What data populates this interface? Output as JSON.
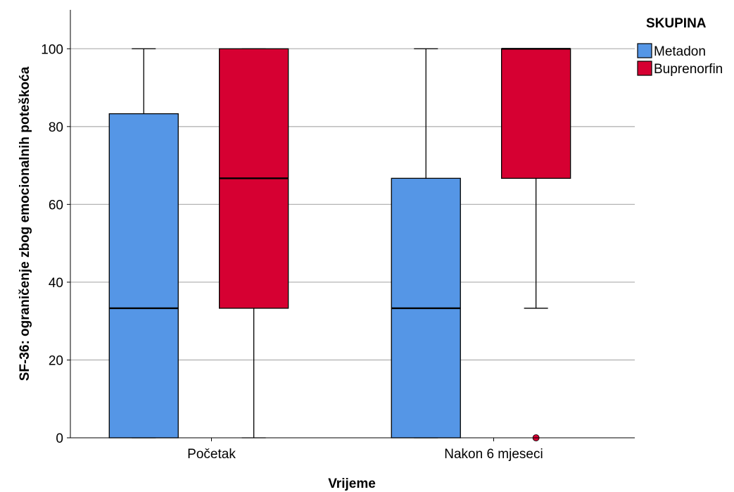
{
  "chart_data": {
    "type": "boxplot",
    "xlabel": "Vrijeme",
    "ylabel": "SF-36: ograničenje zbog emocionalnih poteškoća",
    "categories": [
      "Početak",
      "Nakon 6 mjeseci"
    ],
    "ylim": [
      0,
      110
    ],
    "yticks": [
      0,
      20,
      40,
      60,
      80,
      100
    ],
    "grid": true,
    "legend": {
      "title": "SKUPINA",
      "position": "top-right"
    },
    "series": [
      {
        "name": "Metadon",
        "color": "#5596e6",
        "boxes": [
          {
            "min": 0,
            "q1": 0,
            "median": 33.3,
            "q3": 83.3,
            "max": 100,
            "outliers": []
          },
          {
            "min": 0,
            "q1": 0,
            "median": 33.3,
            "q3": 66.7,
            "max": 100,
            "outliers": []
          }
        ]
      },
      {
        "name": "Buprenorfin",
        "color": "#d60032",
        "boxes": [
          {
            "min": 0,
            "q1": 33.3,
            "median": 66.7,
            "q3": 100,
            "max": 100,
            "outliers": []
          },
          {
            "min": 33.3,
            "q1": 66.7,
            "median": 100,
            "q3": 100,
            "max": 100,
            "outliers": [
              0
            ]
          }
        ]
      }
    ]
  }
}
